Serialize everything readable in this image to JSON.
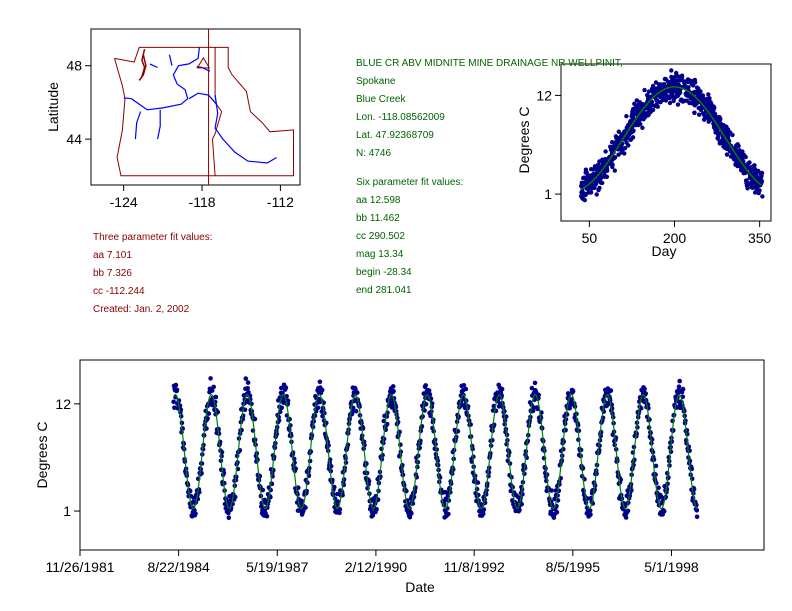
{
  "station": {
    "name": "BLUE CR ABV MIDNITE MINE DRAINAGE NR WELLPINIT,",
    "county": "Spokane",
    "stream": "Blue Creek",
    "lon": "Lon. -118.08562009",
    "lat": "Lat. 47.92368709",
    "n": "N: 4746"
  },
  "six_param": {
    "heading": "Six parameter fit values:",
    "aa": "aa 12.598",
    "bb": "bb 11.462",
    "cc": "cc 290.502",
    "mag": "mag 13.34",
    "begin": "begin -28.34",
    "end": "end 281.041"
  },
  "three_param": {
    "heading": "Three parameter fit values:",
    "aa": "aa 7.101",
    "bb": "bb 7.326",
    "cc": "cc -112.244",
    "created": "Created:   Jan. 2, 2002"
  },
  "colors": {
    "points": "#00008b",
    "fit": "#008000",
    "map_border": "#8b0000",
    "rivers": "#0000ff",
    "text_green": "#006400",
    "text_red": "#8b0000"
  },
  "chart_data": [
    {
      "type": "map",
      "ylabel": "Latitude",
      "xticks": [
        "-124",
        "-118",
        "-112"
      ],
      "yticks": [
        "48",
        "44"
      ],
      "x_tick_values": [
        -124,
        -118,
        -112
      ],
      "y_tick_values": [
        48,
        44
      ],
      "xlim": [
        -126.5,
        -110.5
      ],
      "ylim": [
        41.5,
        50
      ],
      "site_marker": {
        "lon": -118.09,
        "lat": 47.92,
        "shape": "triangle"
      }
    },
    {
      "type": "scatter",
      "xlabel": "Day",
      "ylabel": "Degrees C",
      "xticks": [
        "50",
        "200",
        "350"
      ],
      "yticks": [
        "12",
        "1"
      ],
      "x_tick_values": [
        50,
        200,
        350
      ],
      "y_tick_values": [
        12,
        1
      ],
      "xlim": [
        0,
        370
      ],
      "ylim": [
        -2,
        15.5
      ],
      "x_range": [
        35,
        355
      ],
      "fit": {
        "mean": 7.1,
        "amp": 5.85,
        "peak_day": 200
      }
    },
    {
      "type": "scatter",
      "xlabel": "Date",
      "ylabel": "Degrees C",
      "xticks": [
        "11/26/1981",
        "8/22/1984",
        "5/19/1987",
        "2/12/1990",
        "11/8/1992",
        "8/5/1995",
        "5/1/1998"
      ],
      "yticks": [
        "12",
        "1"
      ],
      "x_tick_values": [
        1981.9,
        1984.64,
        1987.38,
        1990.12,
        1992.85,
        1995.59,
        1998.33
      ],
      "y_tick_values": [
        12,
        1
      ],
      "xlim": [
        1981.9,
        2000.9
      ],
      "ylim": [
        -3,
        16.5
      ],
      "x_range": [
        1984.5,
        1999.05
      ],
      "fit": {
        "mean": 7.1,
        "amp": 5.85,
        "peak_day": 200
      }
    }
  ]
}
